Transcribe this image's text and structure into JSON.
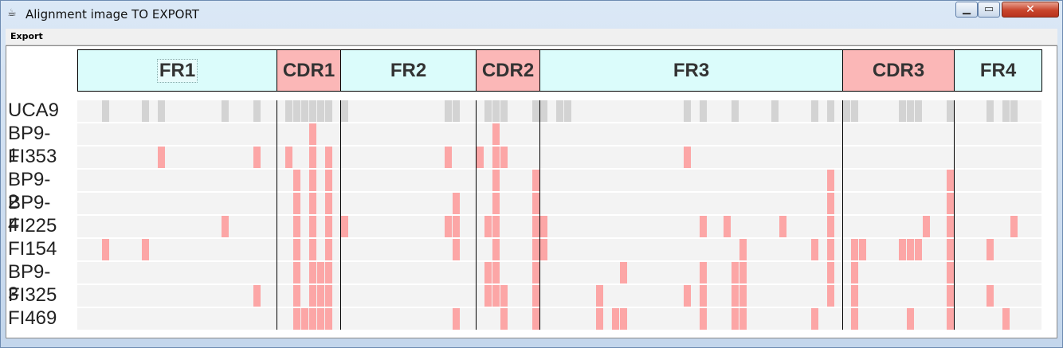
{
  "window": {
    "title": "Alignment image TO EXPORT",
    "app_icon": "java-cup-icon",
    "controls": {
      "minimize_icon": "minimize-icon",
      "maximize_icon": "maximize-icon",
      "close_icon": "close-icon"
    }
  },
  "menubar": {
    "export_label": "Export"
  },
  "regions": [
    {
      "label": "FR1",
      "kind": "fr",
      "start": 0,
      "end": 25
    },
    {
      "label": "CDR1",
      "kind": "cdr",
      "start": 25,
      "end": 33
    },
    {
      "label": "FR2",
      "kind": "fr",
      "start": 33,
      "end": 50
    },
    {
      "label": "CDR2",
      "kind": "cdr",
      "start": 50,
      "end": 58
    },
    {
      "label": "FR3",
      "kind": "fr",
      "start": 58,
      "end": 96
    },
    {
      "label": "CDR3",
      "kind": "cdr",
      "start": 96,
      "end": 110
    },
    {
      "label": "FR4",
      "kind": "fr",
      "start": 110,
      "end": 121
    }
  ],
  "colors": {
    "fr_region": "#dbfcfb",
    "cdr_region": "#fbb7b7",
    "reference_mark": "#d3d3d3",
    "mutation_mark": "#fca6a6",
    "row_background": "#f3f3f3"
  },
  "alignment": {
    "positions": 121,
    "reference": "UCA9",
    "rows": [
      {
        "name": "UCA9",
        "reference": true,
        "marks": [
          3,
          8,
          10,
          18,
          22,
          26,
          27,
          28,
          29,
          30,
          31,
          33,
          46,
          47,
          51,
          52,
          53,
          57,
          58,
          60,
          61,
          76,
          78,
          82,
          87,
          92,
          94,
          96,
          97,
          103,
          104,
          105,
          109,
          114,
          116,
          117
        ]
      },
      {
        "name": "BP9-1",
        "marks": [
          29,
          52
        ]
      },
      {
        "name": "FI353",
        "marks": [
          10,
          22,
          26,
          29,
          31,
          46,
          50,
          52,
          53,
          76
        ]
      },
      {
        "name": "BP9-2",
        "marks": [
          27,
          29,
          31,
          52,
          57,
          94,
          109
        ]
      },
      {
        "name": "BP9-4",
        "marks": [
          27,
          29,
          31,
          47,
          52,
          57,
          94,
          109
        ]
      },
      {
        "name": "FI225",
        "marks": [
          18,
          27,
          29,
          31,
          33,
          46,
          47,
          51,
          52,
          57,
          58,
          78,
          81,
          88,
          94,
          106,
          109,
          117
        ]
      },
      {
        "name": "FI154",
        "marks": [
          3,
          8,
          27,
          29,
          31,
          47,
          52,
          57,
          58,
          83,
          92,
          94,
          97,
          98,
          103,
          104,
          105,
          109,
          114
        ]
      },
      {
        "name": "BP9-3",
        "marks": [
          27,
          29,
          30,
          31,
          51,
          52,
          57,
          68,
          78,
          82,
          83,
          94,
          97,
          109
        ]
      },
      {
        "name": "FI325",
        "marks": [
          22,
          27,
          29,
          30,
          31,
          51,
          52,
          53,
          57,
          65,
          76,
          78,
          82,
          83,
          94,
          97,
          109,
          114
        ]
      },
      {
        "name": "FI469",
        "marks": [
          27,
          28,
          29,
          30,
          31,
          47,
          53,
          57,
          65,
          67,
          68,
          78,
          82,
          83,
          92,
          97,
          104,
          109,
          116
        ]
      }
    ]
  }
}
